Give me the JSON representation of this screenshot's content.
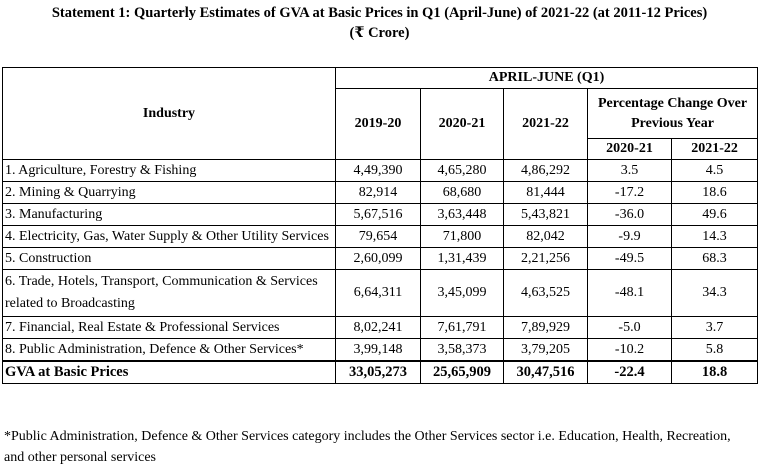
{
  "title": "Statement 1: Quarterly Estimates of GVA at Basic Prices in Q1 (April-June) of 2021-22 (at 2011-12 Prices)",
  "subtitle": "(₹ Crore)",
  "header": {
    "industry": "Industry",
    "group": "APRIL-JUNE (Q1)",
    "years": [
      "2019-20",
      "2020-21",
      "2021-22"
    ],
    "pct_label": "Percentage Change Over Previous Year",
    "pct_years": [
      "2020-21",
      "2021-22"
    ]
  },
  "rows": [
    {
      "name": "1. Agriculture, Forestry & Fishing",
      "v1": "4,49,390",
      "v2": "4,65,280",
      "v3": "4,86,292",
      "p1": "3.5",
      "p2": "4.5"
    },
    {
      "name": "2. Mining & Quarrying",
      "v1": "82,914",
      "v2": "68,680",
      "v3": "81,444",
      "p1": "-17.2",
      "p2": "18.6"
    },
    {
      "name": "3. Manufacturing",
      "v1": "5,67,516",
      "v2": "3,63,448",
      "v3": "5,43,821",
      "p1": "-36.0",
      "p2": "49.6"
    },
    {
      "name": "4. Electricity, Gas, Water Supply & Other Utility Services",
      "v1": "79,654",
      "v2": "71,800",
      "v3": "82,042",
      "p1": "-9.9",
      "p2": "14.3"
    },
    {
      "name": "5. Construction",
      "v1": "2,60,099",
      "v2": "1,31,439",
      "v3": "2,21,256",
      "p1": "-49.5",
      "p2": "68.3"
    },
    {
      "name": "6. Trade, Hotels, Transport, Communication & Services related to Broadcasting",
      "v1": "6,64,311",
      "v2": "3,45,099",
      "v3": "4,63,525",
      "p1": "-48.1",
      "p2": "34.3"
    },
    {
      "name": "7. Financial, Real Estate & Professional Services",
      "v1": "8,02,241",
      "v2": "7,61,791",
      "v3": "7,89,929",
      "p1": "-5.0",
      "p2": "3.7"
    },
    {
      "name": "8. Public Administration, Defence & Other Services*",
      "v1": "3,99,148",
      "v2": "3,58,373",
      "v3": "3,79,205",
      "p1": "-10.2",
      "p2": "5.8"
    }
  ],
  "total": {
    "name": "GVA at Basic Prices",
    "v1": "33,05,273",
    "v2": "25,65,909",
    "v3": "30,47,516",
    "p1": "-22.4",
    "p2": "18.8"
  },
  "footnote": "*Public Administration, Defence & Other Services category includes the Other Services sector i.e. Education, Health, Recreation, and other personal services"
}
